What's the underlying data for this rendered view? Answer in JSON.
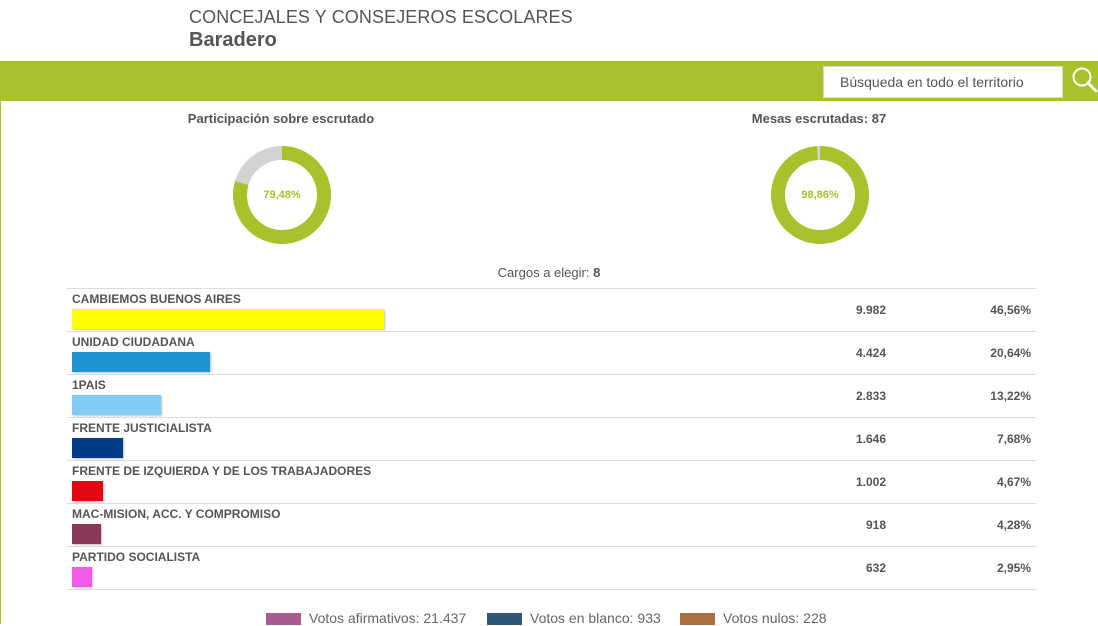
{
  "header": {
    "title": "CONCEJALES Y CONSEJEROS ESCOLARES",
    "location": "Baradero"
  },
  "search": {
    "placeholder": "Búsqueda en todo el territorio",
    "icon": "search-icon"
  },
  "participation": {
    "title": "Participación sobre escrutado",
    "value_label": "79,48%",
    "fraction": 0.7948
  },
  "tables": {
    "title": "Mesas escrutadas: 87",
    "value_label": "98,86%",
    "fraction": 0.9886
  },
  "cargos": {
    "label": "Cargos a elegir:",
    "value": "8"
  },
  "colors": {
    "accent": "#a8c22c",
    "donut_remainder": "#d3d3d3"
  },
  "results": [
    {
      "name": "CAMBIEMOS BUENOS AIRES",
      "votes": "9.982",
      "percent": "46,56%",
      "pct": 46.56,
      "color": "#ffff00"
    },
    {
      "name": "UNIDAD CIUDADANA",
      "votes": "4.424",
      "percent": "20,64%",
      "pct": 20.64,
      "color": "#1f96d3"
    },
    {
      "name": "1PAIS",
      "votes": "2.833",
      "percent": "13,22%",
      "pct": 13.22,
      "color": "#7fcdf4"
    },
    {
      "name": "FRENTE JUSTICIALISTA",
      "votes": "1.646",
      "percent": "7,68%",
      "pct": 7.68,
      "color": "#013d85"
    },
    {
      "name": "FRENTE DE IZQUIERDA Y DE LOS TRABAJADORES",
      "votes": "1.002",
      "percent": "4,67%",
      "pct": 4.67,
      "color": "#e30613"
    },
    {
      "name": "MAC-MISION, ACC. Y COMPROMISO",
      "votes": "918",
      "percent": "4,28%",
      "pct": 4.28,
      "color": "#8b3758"
    },
    {
      "name": "PARTIDO SOCIALISTA",
      "votes": "632",
      "percent": "2,95%",
      "pct": 2.95,
      "color": "#f15ae6"
    }
  ],
  "legend": [
    {
      "label": "Votos afirmativos: 21.437",
      "color": "#a95d8f"
    },
    {
      "label": "Votos en blanco: 933",
      "color": "#2f5777"
    },
    {
      "label": "Votos nulos: 228",
      "color": "#ad6f40"
    }
  ]
}
